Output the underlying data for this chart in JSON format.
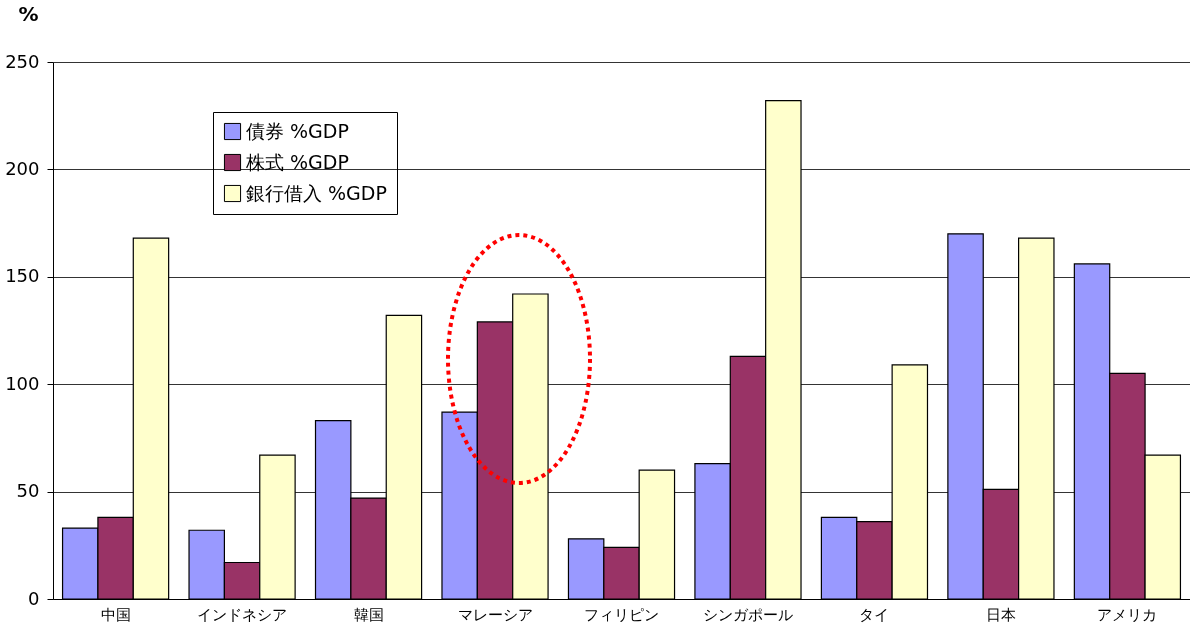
{
  "chart_data": {
    "type": "bar",
    "ylabel": "%",
    "categories": [
      "中国",
      "インドネシア",
      "韓国",
      "マレーシア",
      "フィリピン",
      "シンガポール",
      "タイ",
      "日本",
      "アメリカ"
    ],
    "series": [
      {
        "name": "債券 %GDP",
        "color": "#9999ff",
        "values": [
          33,
          32,
          83,
          87,
          28,
          63,
          38,
          170,
          156
        ]
      },
      {
        "name": "株式 %GDP",
        "color": "#993366",
        "values": [
          38,
          17,
          47,
          129,
          24,
          113,
          36,
          51,
          105
        ]
      },
      {
        "name": "銀行借入 %GDP",
        "color": "#ffffcc",
        "values": [
          168,
          67,
          132,
          142,
          60,
          232,
          109,
          168,
          67
        ]
      }
    ],
    "ylim": [
      0,
      250
    ],
    "yticks": [
      0,
      50,
      100,
      150,
      200,
      250
    ],
    "grid": "y",
    "legend": "top left"
  }
}
